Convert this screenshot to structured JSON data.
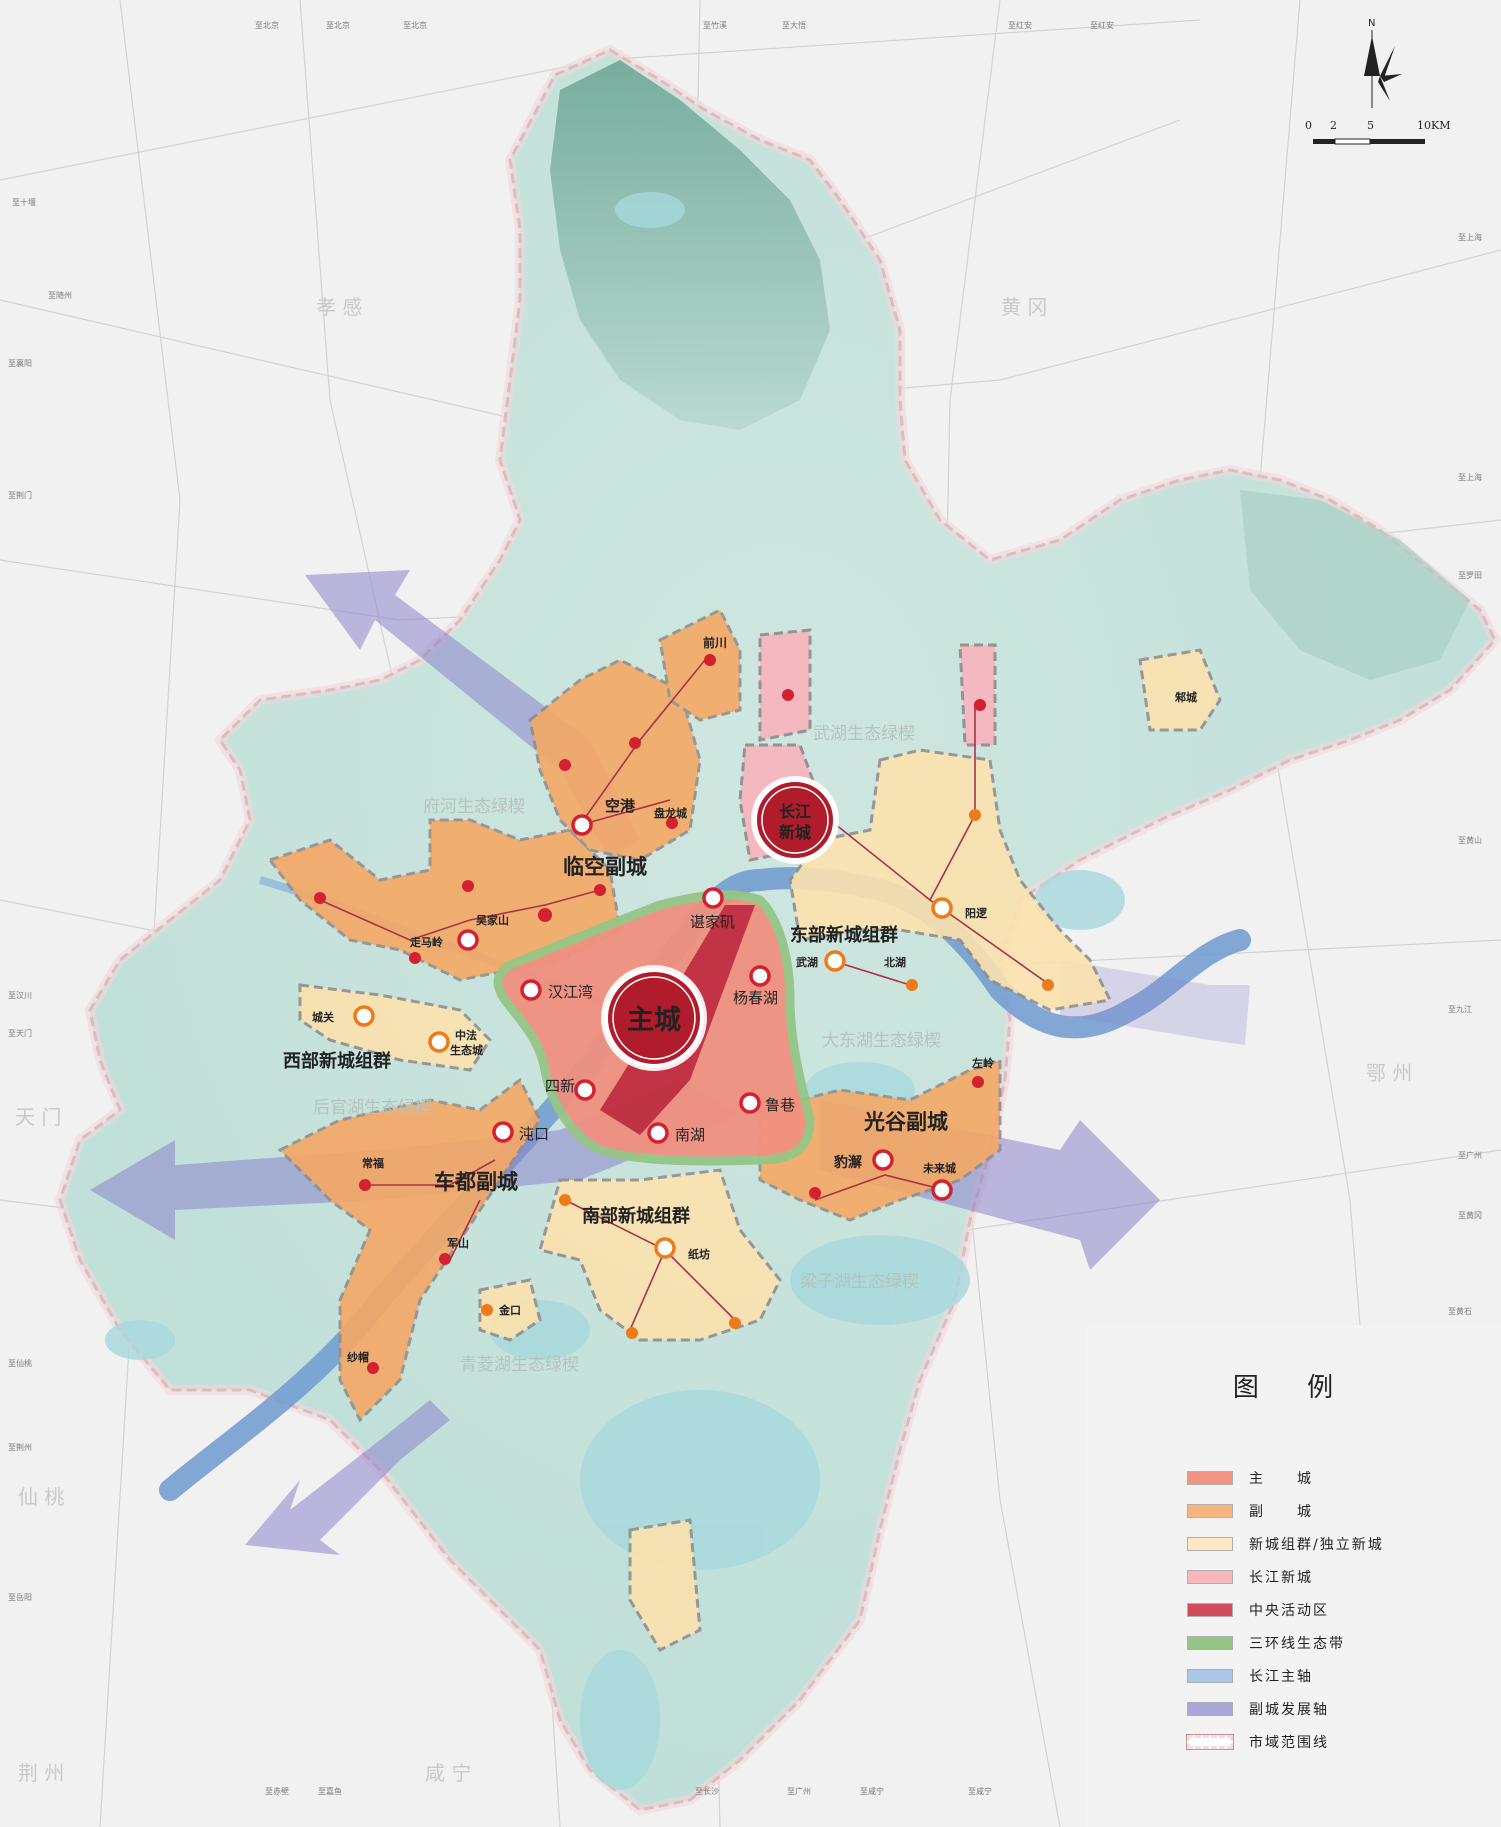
{
  "compass": {
    "label": "N"
  },
  "scale": {
    "ticks": [
      "0",
      "2",
      "5",
      "10KM"
    ]
  },
  "subcities": {
    "linkong": "临空副城",
    "chedu": "车都副城",
    "guanggu": "光谷副城"
  },
  "main_city": "主城",
  "changjiang_new_city": [
    "长江",
    "新城"
  ],
  "clusters": {
    "east": "东部新城组群",
    "west": "西部新城组群",
    "south": "南部新城组群"
  },
  "places": {
    "qianchuan": "前川",
    "konggang": "空港",
    "panlongcheng": "盘龙城",
    "wujiashan": "吴家山",
    "zoumaling": "走马岭",
    "chengguan": "城关",
    "zhongfa": [
      "中法",
      "生态城"
    ],
    "hanjiangwan": "汉江湾",
    "sixin": "四新",
    "zhuankou": "沌口",
    "changfu": "常福",
    "junshan": "军山",
    "jinkou": "金口",
    "shamao": "纱帽",
    "zhifang": "纸坊",
    "nanhu": "南湖",
    "luxiang": "鲁巷",
    "baoxie": "豹澥",
    "weilaicheng": "未来城",
    "zuoling": "左岭",
    "yangchunhu": "杨春湖",
    "chenjiaji": "谌家矶",
    "wuhu": "武湖",
    "beihu": "北湖",
    "yangluo": "阳逻",
    "zhucheng": "邾城"
  },
  "green_wedges": {
    "fuhe": "府河生态绿楔",
    "wuhu": "武湖生态绿楔",
    "dadonghu": "大东湖生态绿楔",
    "houguanhu": "后官湖生态绿楔",
    "liangzihu": "梁子湖生态绿楔",
    "qinglinghu": "青菱湖生态绿楔"
  },
  "regions": {
    "xiaogan": "孝 感",
    "huanggang": "黄 冈",
    "ezhou": "鄂 州",
    "tianmen": "天 门",
    "xiantao": "仙 桃",
    "jingzhou": "荆 州",
    "xianning": "咸 宁"
  },
  "edge_labels": {
    "n1": "至北京",
    "n2": "至北京",
    "n3": "至北京",
    "n4": "至竹溪",
    "n5": "至大悟",
    "n6": "至红安",
    "n7": "至红安",
    "e1": "至上海",
    "e2": "至上海",
    "e3": "至罗田",
    "e4": "至黄山",
    "e5": "至九江",
    "e6": "至广州",
    "e7": "至黄冈",
    "e8": "至黄石",
    "w1": "至十堰",
    "w2": "至随州",
    "w3": "至荆门",
    "w4": "至襄阳",
    "w5": "至天门",
    "w6": "至汉川",
    "w7": "至仙桃",
    "w8": "至荆州",
    "s1": "至岳阳",
    "s2": "至咸宁",
    "s3": "至赤壁",
    "s4": "至嘉鱼",
    "s5": "至长沙",
    "s6": "至广州",
    "s7": "至咸宁"
  },
  "legend": {
    "title": "图 例",
    "items": [
      {
        "label": "主　　城",
        "color": "#f19481"
      },
      {
        "label": "副　　城",
        "color": "#f7b57e"
      },
      {
        "label": "新城组群/独立新城",
        "color": "#fbe8c2"
      },
      {
        "label": "长江新城",
        "color": "#f6b7be"
      },
      {
        "label": "中央活动区",
        "color": "#d24b5a"
      },
      {
        "label": "三环线生态带",
        "color": "#94c585"
      },
      {
        "label": "长江主轴",
        "color": "#a9c6e6"
      },
      {
        "label": "副城发展轴",
        "color": "#aaa6d8"
      },
      {
        "label": "市域范围线",
        "color": "#f3dcdf"
      }
    ]
  },
  "colors": {
    "background": "#f1f1f1",
    "terrain": "#c6e3dd",
    "main_city": "#e6685a",
    "sub_city": "#f6a865",
    "new_city": "#fbe2ad",
    "changjiang_new": "#f6b7be",
    "cbd": "#b8223a",
    "green_ring": "#94c585",
    "yangtze": "#5f8fc6",
    "axis": "#8a84cc",
    "boundary": "#b56a6a"
  }
}
